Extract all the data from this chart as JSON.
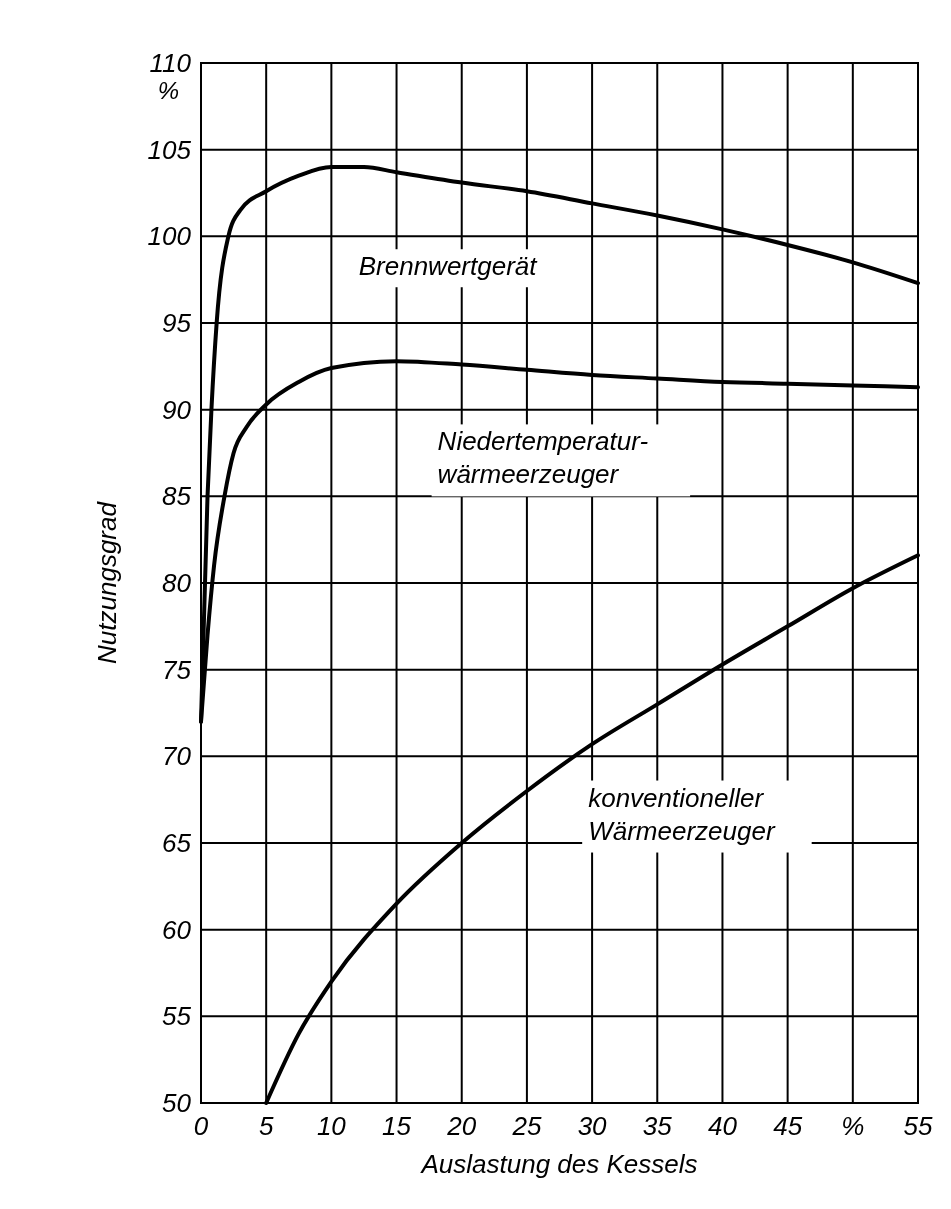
{
  "chart_data": {
    "type": "line",
    "xlabel": "Auslastung des Kessels",
    "ylabel": "Nutzungsgrad",
    "annotations": [
      "%"
    ],
    "xlim": [
      0,
      55
    ],
    "ylim": [
      50,
      110
    ],
    "xticks": [
      0,
      5,
      10,
      15,
      20,
      25,
      30,
      35,
      40,
      45,
      {
        "value": 50,
        "label": "%"
      },
      55
    ],
    "yticks": [
      50,
      55,
      60,
      65,
      70,
      75,
      80,
      85,
      90,
      95,
      100,
      105,
      110
    ],
    "grid": true,
    "marker": "none",
    "line_style": "solid",
    "series": [
      {
        "name": "Brennwertgerät",
        "color": "#000000",
        "x": [
          0,
          0.5,
          0.8,
          1.2,
          2.1,
          3,
          5,
          7.5,
          10,
          12.5,
          15,
          20,
          25,
          30,
          35,
          40,
          45,
          50,
          55
        ],
        "values": [
          72,
          85,
          90,
          95,
          100,
          101.5,
          102.6,
          103.5,
          104,
          104,
          103.7,
          103.1,
          102.6,
          101.9,
          101.2,
          100.4,
          99.5,
          98.5,
          97.3
        ]
      },
      {
        "name": "Niedertemperatur-\nwärmeerzeuger",
        "color": "#000000",
        "x": [
          0,
          0.5,
          1,
          1.8,
          2.5,
          3.5,
          5,
          7.5,
          10,
          15,
          20,
          25,
          30,
          35,
          40,
          45,
          50,
          55
        ],
        "values": [
          72,
          77,
          81,
          85,
          87.5,
          89,
          90.3,
          91.6,
          92.4,
          92.8,
          92.6,
          92.3,
          92,
          91.8,
          91.6,
          91.5,
          91.4,
          91.3
        ]
      },
      {
        "name": "konventioneller\nWärmeerzeuger",
        "color": "#000000",
        "x": [
          5,
          7.5,
          10,
          15,
          20,
          25,
          30,
          35,
          40,
          45,
          50,
          55
        ],
        "values": [
          50,
          54,
          57,
          61.5,
          65,
          68,
          70.7,
          73,
          75.3,
          77.5,
          79.7,
          81.6
        ]
      }
    ]
  }
}
